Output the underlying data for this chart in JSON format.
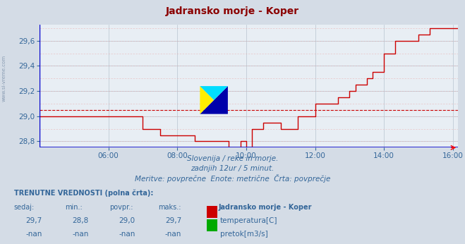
{
  "title": "Jadransko morje - Koper",
  "title_color": "#8b0000",
  "bg_color": "#d4dce6",
  "plot_bg_color": "#e8eef4",
  "grid_color": "#b8c4d0",
  "dashed_grid_color": "#e8aaaa",
  "axis_color": "#0000cc",
  "tick_color": "#336699",
  "line_color": "#cc0000",
  "avg_line_color": "#cc0000",
  "avg_line_value": 29.05,
  "xlim_start": 4.0,
  "xlim_end": 16.15,
  "ylim_min": 28.75,
  "ylim_max": 29.73,
  "yticks": [
    28.8,
    29.0,
    29.2,
    29.4,
    29.6
  ],
  "xticks": [
    6,
    8,
    10,
    12,
    14,
    16
  ],
  "xtick_labels": [
    "06:00",
    "08:00",
    "10:00",
    "12:00",
    "14:00",
    "16:00"
  ],
  "subtitle1": "Slovenija / reke in morje.",
  "subtitle2": "zadnjih 12ur / 5 minut.",
  "subtitle3": "Meritve: povprečne  Enote: metrične  Črta: povprečje",
  "legend_title": "TRENUTNE VREDNOSTI (polna črta):",
  "col_headers": [
    "sedaj:",
    "min.:",
    "povpr.:",
    "maks.:"
  ],
  "row1_vals": [
    "29,7",
    "28,8",
    "29,0",
    "29,7"
  ],
  "row2_vals": [
    "-nan",
    "-nan",
    "-nan",
    "-nan"
  ],
  "series1_label": "temperatura[C]",
  "series1_color": "#cc0000",
  "series2_label": "pretok[m3/s]",
  "series2_color": "#00aa00",
  "station_label": "Jadransko morje - Koper",
  "left_label": "www.si-vreme.com",
  "temperature_data": [
    [
      4.0,
      29.0
    ],
    [
      7.0,
      29.0
    ],
    [
      7.0,
      28.9
    ],
    [
      7.5,
      28.9
    ],
    [
      7.5,
      28.85
    ],
    [
      8.5,
      28.85
    ],
    [
      8.5,
      28.8
    ],
    [
      9.5,
      28.8
    ],
    [
      9.5,
      28.75
    ],
    [
      9.83,
      28.75
    ],
    [
      9.83,
      28.8
    ],
    [
      10.0,
      28.8
    ],
    [
      10.0,
      28.75
    ],
    [
      10.17,
      28.75
    ],
    [
      10.17,
      28.9
    ],
    [
      10.5,
      28.9
    ],
    [
      10.5,
      28.95
    ],
    [
      11.0,
      28.95
    ],
    [
      11.0,
      28.9
    ],
    [
      11.5,
      28.9
    ],
    [
      11.5,
      29.0
    ],
    [
      12.0,
      29.0
    ],
    [
      12.0,
      29.1
    ],
    [
      12.67,
      29.1
    ],
    [
      12.67,
      29.15
    ],
    [
      13.0,
      29.15
    ],
    [
      13.0,
      29.2
    ],
    [
      13.17,
      29.2
    ],
    [
      13.17,
      29.25
    ],
    [
      13.5,
      29.25
    ],
    [
      13.5,
      29.3
    ],
    [
      13.67,
      29.3
    ],
    [
      13.67,
      29.35
    ],
    [
      14.0,
      29.35
    ],
    [
      14.0,
      29.5
    ],
    [
      14.33,
      29.5
    ],
    [
      14.33,
      29.6
    ],
    [
      15.0,
      29.6
    ],
    [
      15.0,
      29.65
    ],
    [
      15.33,
      29.65
    ],
    [
      15.33,
      29.7
    ],
    [
      16.15,
      29.7
    ]
  ]
}
